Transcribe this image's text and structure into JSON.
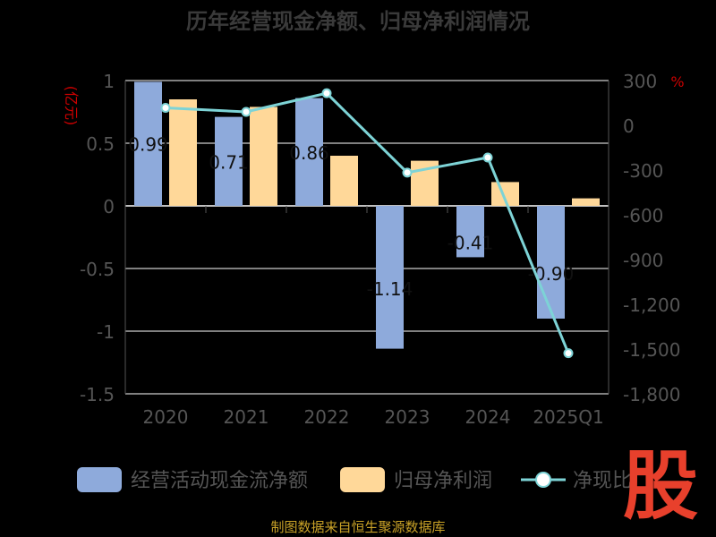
{
  "title": "历年经营现金净额、归母净利润情况",
  "colors": {
    "background": "#000000",
    "bar_cash": "#8eaadb",
    "bar_profit": "#ffd899",
    "line": "#7dd3d6",
    "title": "#3a3a3a",
    "axis_text": "#555555",
    "unit": "#cc0000",
    "source": "#c9a227",
    "watermark": "#e8402c"
  },
  "source_text": "制图数据来自恒生聚源数据库",
  "watermark": "股",
  "chart_data": {
    "type": "bar",
    "categories": [
      "2020",
      "2021",
      "2022",
      "2023",
      "2024",
      "2025Q1"
    ],
    "left_axis": {
      "unit": "(亿元)",
      "ylim": [
        -1.5,
        1
      ],
      "ticks": [
        1,
        0.5,
        0,
        -0.5,
        -1,
        -1.5
      ],
      "tick_labels": [
        "1",
        "0.5",
        "0",
        "-0.5",
        "-1",
        "-1.5"
      ]
    },
    "right_axis": {
      "unit": "%",
      "ylim": [
        -1800,
        300
      ],
      "ticks": [
        300,
        0,
        -300,
        -600,
        -900,
        -1200,
        -1500,
        -1800
      ],
      "tick_labels": [
        "300",
        "0",
        "-300",
        "-600",
        "-900",
        "-1,200",
        "-1,500",
        "-1,800"
      ]
    },
    "series": [
      {
        "name": "经营活动现金流净额",
        "type": "bar",
        "axis": "left",
        "values": [
          0.99,
          0.71,
          0.86,
          -1.14,
          -0.41,
          -0.9
        ],
        "labels": [
          "0.99",
          "0.71",
          "0.86",
          "-1.14",
          "-0.41",
          "-0.90"
        ]
      },
      {
        "name": "归母净利润",
        "type": "bar",
        "axis": "left",
        "values": [
          0.85,
          0.79,
          0.4,
          0.36,
          0.19,
          0.06
        ]
      },
      {
        "name": "净现比",
        "type": "line",
        "axis": "right",
        "values": [
          117,
          90,
          215,
          -317,
          -216,
          -1528
        ]
      }
    ],
    "legend": {
      "position": "bottom"
    },
    "grid": true
  }
}
